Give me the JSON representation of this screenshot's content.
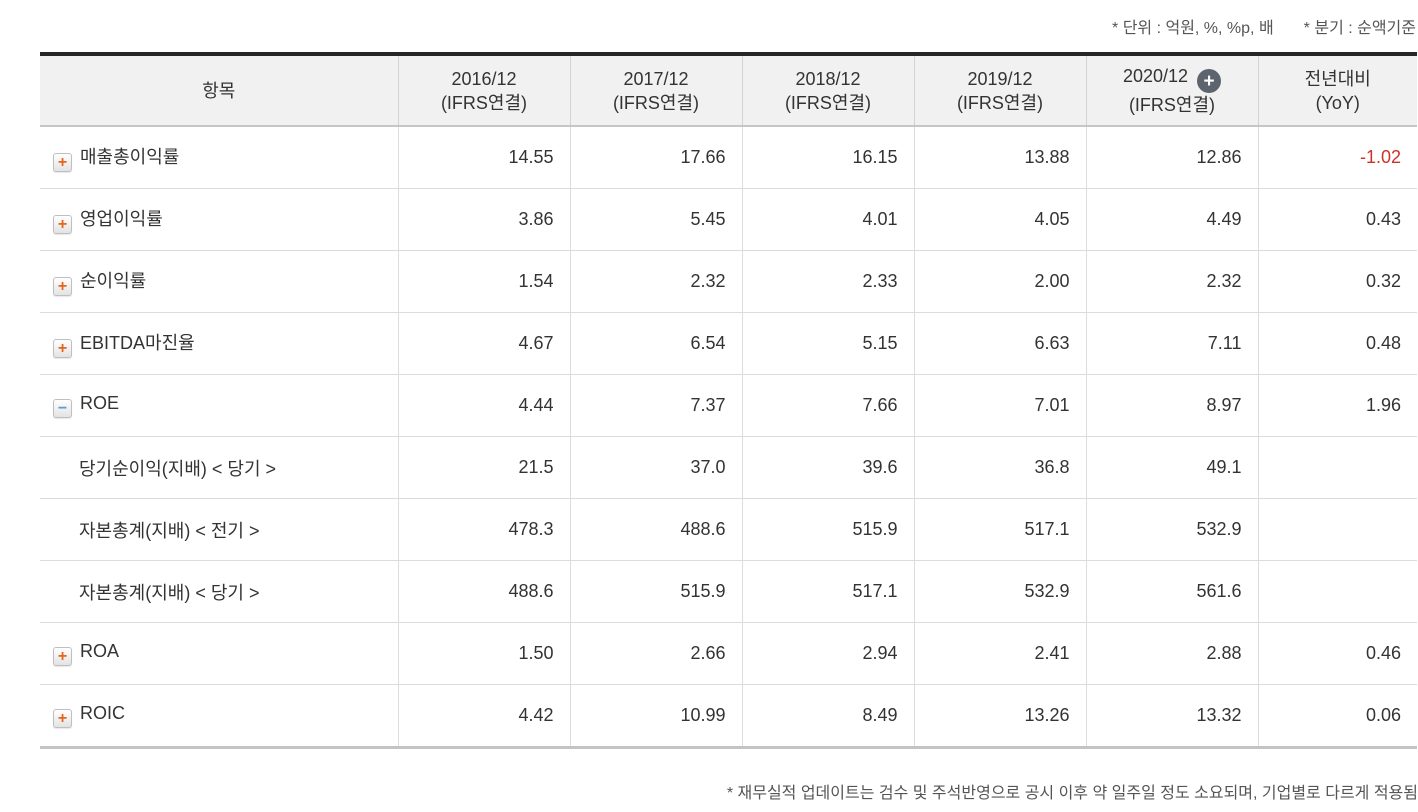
{
  "notes": {
    "unit": "* 단위 : 억원, %, %p, 배",
    "basis": "* 분기 : 순액기준",
    "footnote": "* 재무실적 업데이트는 검수 및 주석반영으로 공시 이후 약 일주일 정도 소요되며, 기업별로 다르게 적용됨"
  },
  "icons": {
    "plus": "+",
    "minus": "−",
    "add": "+"
  },
  "table": {
    "item_header": "항목",
    "columns": [
      {
        "period": "2016/12",
        "standard": "(IFRS연결)"
      },
      {
        "period": "2017/12",
        "standard": "(IFRS연결)"
      },
      {
        "period": "2018/12",
        "standard": "(IFRS연결)"
      },
      {
        "period": "2019/12",
        "standard": "(IFRS연결)"
      },
      {
        "period": "2020/12",
        "standard": "(IFRS연결)",
        "has_add_icon": true
      },
      {
        "period": "전년대비",
        "standard": "(YoY)"
      }
    ],
    "rows": [
      {
        "label": "매출총이익률",
        "toggle": "plus",
        "values": [
          "14.55",
          "17.66",
          "16.15",
          "13.88",
          "12.86"
        ],
        "yoy": "-1.02",
        "yoy_negative": true
      },
      {
        "label": "영업이익률",
        "toggle": "plus",
        "values": [
          "3.86",
          "5.45",
          "4.01",
          "4.05",
          "4.49"
        ],
        "yoy": "0.43",
        "yoy_negative": false
      },
      {
        "label": "순이익률",
        "toggle": "plus",
        "values": [
          "1.54",
          "2.32",
          "2.33",
          "2.00",
          "2.32"
        ],
        "yoy": "0.32",
        "yoy_negative": false
      },
      {
        "label": "EBITDA마진율",
        "toggle": "plus",
        "values": [
          "4.67",
          "6.54",
          "5.15",
          "6.63",
          "7.11"
        ],
        "yoy": "0.48",
        "yoy_negative": false
      },
      {
        "label": "ROE",
        "toggle": "minus",
        "values": [
          "4.44",
          "7.37",
          "7.66",
          "7.01",
          "8.97"
        ],
        "yoy": "1.96",
        "yoy_negative": false
      },
      {
        "label": "당기순이익(지배) < 당기 >",
        "toggle": "none",
        "values": [
          "21.5",
          "37.0",
          "39.6",
          "36.8",
          "49.1"
        ],
        "yoy": "",
        "yoy_negative": false
      },
      {
        "label": "자본총계(지배) < 전기 >",
        "toggle": "none",
        "values": [
          "478.3",
          "488.6",
          "515.9",
          "517.1",
          "532.9"
        ],
        "yoy": "",
        "yoy_negative": false
      },
      {
        "label": "자본총계(지배) < 당기 >",
        "toggle": "none",
        "values": [
          "488.6",
          "515.9",
          "517.1",
          "532.9",
          "561.6"
        ],
        "yoy": "",
        "yoy_negative": false
      },
      {
        "label": "ROA",
        "toggle": "plus",
        "values": [
          "1.50",
          "2.66",
          "2.94",
          "2.41",
          "2.88"
        ],
        "yoy": "0.46",
        "yoy_negative": false
      },
      {
        "label": "ROIC",
        "toggle": "plus",
        "values": [
          "4.42",
          "10.99",
          "8.49",
          "13.26",
          "13.32"
        ],
        "yoy": "0.06",
        "yoy_negative": false
      }
    ]
  },
  "colors": {
    "negative_value": "#cc3328",
    "plus_toggle": "#e2661c",
    "minus_toggle": "#5b9bd8",
    "add_circle_bg": "#5d646e",
    "header_bg": "#f1f1f1",
    "top_border": "#262626"
  }
}
